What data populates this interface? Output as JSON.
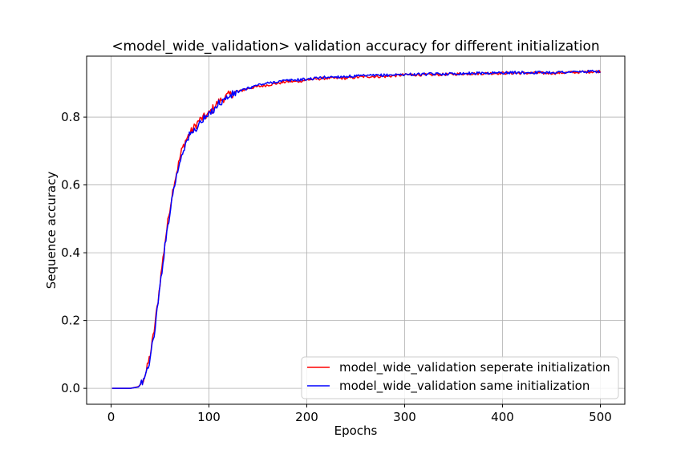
{
  "chart_data": {
    "type": "line",
    "title": "<model_wide_validation> validation accuracy for different initialization",
    "xlabel": "Epochs",
    "ylabel": "Sequence accuracy",
    "xlim": [
      -25,
      525
    ],
    "ylim": [
      -0.047,
      0.98
    ],
    "xticks": [
      0,
      100,
      200,
      300,
      400,
      500
    ],
    "yticks": [
      0.0,
      0.2,
      0.4,
      0.6,
      0.8
    ],
    "xtick_labels": [
      "0",
      "100",
      "200",
      "300",
      "400",
      "500"
    ],
    "ytick_labels": [
      "0.0",
      "0.2",
      "0.4",
      "0.6",
      "0.8"
    ],
    "grid": true,
    "legend_position": "lower-right",
    "series": [
      {
        "name": "model_wide_validation seperate initialization",
        "color": "#ff0000",
        "x": [
          1,
          20,
          28,
          32,
          36,
          40,
          44,
          48,
          52,
          56,
          60,
          64,
          68,
          72,
          76,
          80,
          85,
          90,
          95,
          100,
          105,
          110,
          115,
          120,
          130,
          140,
          150,
          160,
          170,
          180,
          190,
          200,
          220,
          240,
          260,
          280,
          300,
          330,
          360,
          400,
          450,
          500
        ],
        "y": [
          0.0,
          0.0,
          0.005,
          0.02,
          0.05,
          0.1,
          0.17,
          0.26,
          0.36,
          0.45,
          0.53,
          0.6,
          0.65,
          0.7,
          0.73,
          0.75,
          0.77,
          0.79,
          0.8,
          0.81,
          0.83,
          0.845,
          0.855,
          0.865,
          0.875,
          0.885,
          0.89,
          0.895,
          0.9,
          0.905,
          0.905,
          0.91,
          0.915,
          0.915,
          0.92,
          0.92,
          0.925,
          0.925,
          0.928,
          0.93,
          0.93,
          0.935
        ]
      },
      {
        "name": "model_wide_validation same initialization",
        "color": "#0000ff",
        "x": [
          1,
          20,
          28,
          32,
          36,
          40,
          44,
          48,
          52,
          56,
          60,
          64,
          68,
          72,
          76,
          80,
          85,
          90,
          95,
          100,
          105,
          110,
          115,
          120,
          130,
          140,
          150,
          160,
          170,
          180,
          190,
          200,
          220,
          240,
          260,
          280,
          300,
          330,
          360,
          400,
          450,
          500
        ],
        "y": [
          0.0,
          0.0,
          0.004,
          0.018,
          0.045,
          0.09,
          0.16,
          0.25,
          0.35,
          0.44,
          0.52,
          0.59,
          0.64,
          0.69,
          0.72,
          0.745,
          0.76,
          0.78,
          0.795,
          0.805,
          0.825,
          0.84,
          0.85,
          0.86,
          0.875,
          0.885,
          0.895,
          0.9,
          0.905,
          0.908,
          0.91,
          0.912,
          0.918,
          0.92,
          0.922,
          0.924,
          0.926,
          0.927,
          0.929,
          0.931,
          0.932,
          0.935
        ]
      }
    ]
  }
}
